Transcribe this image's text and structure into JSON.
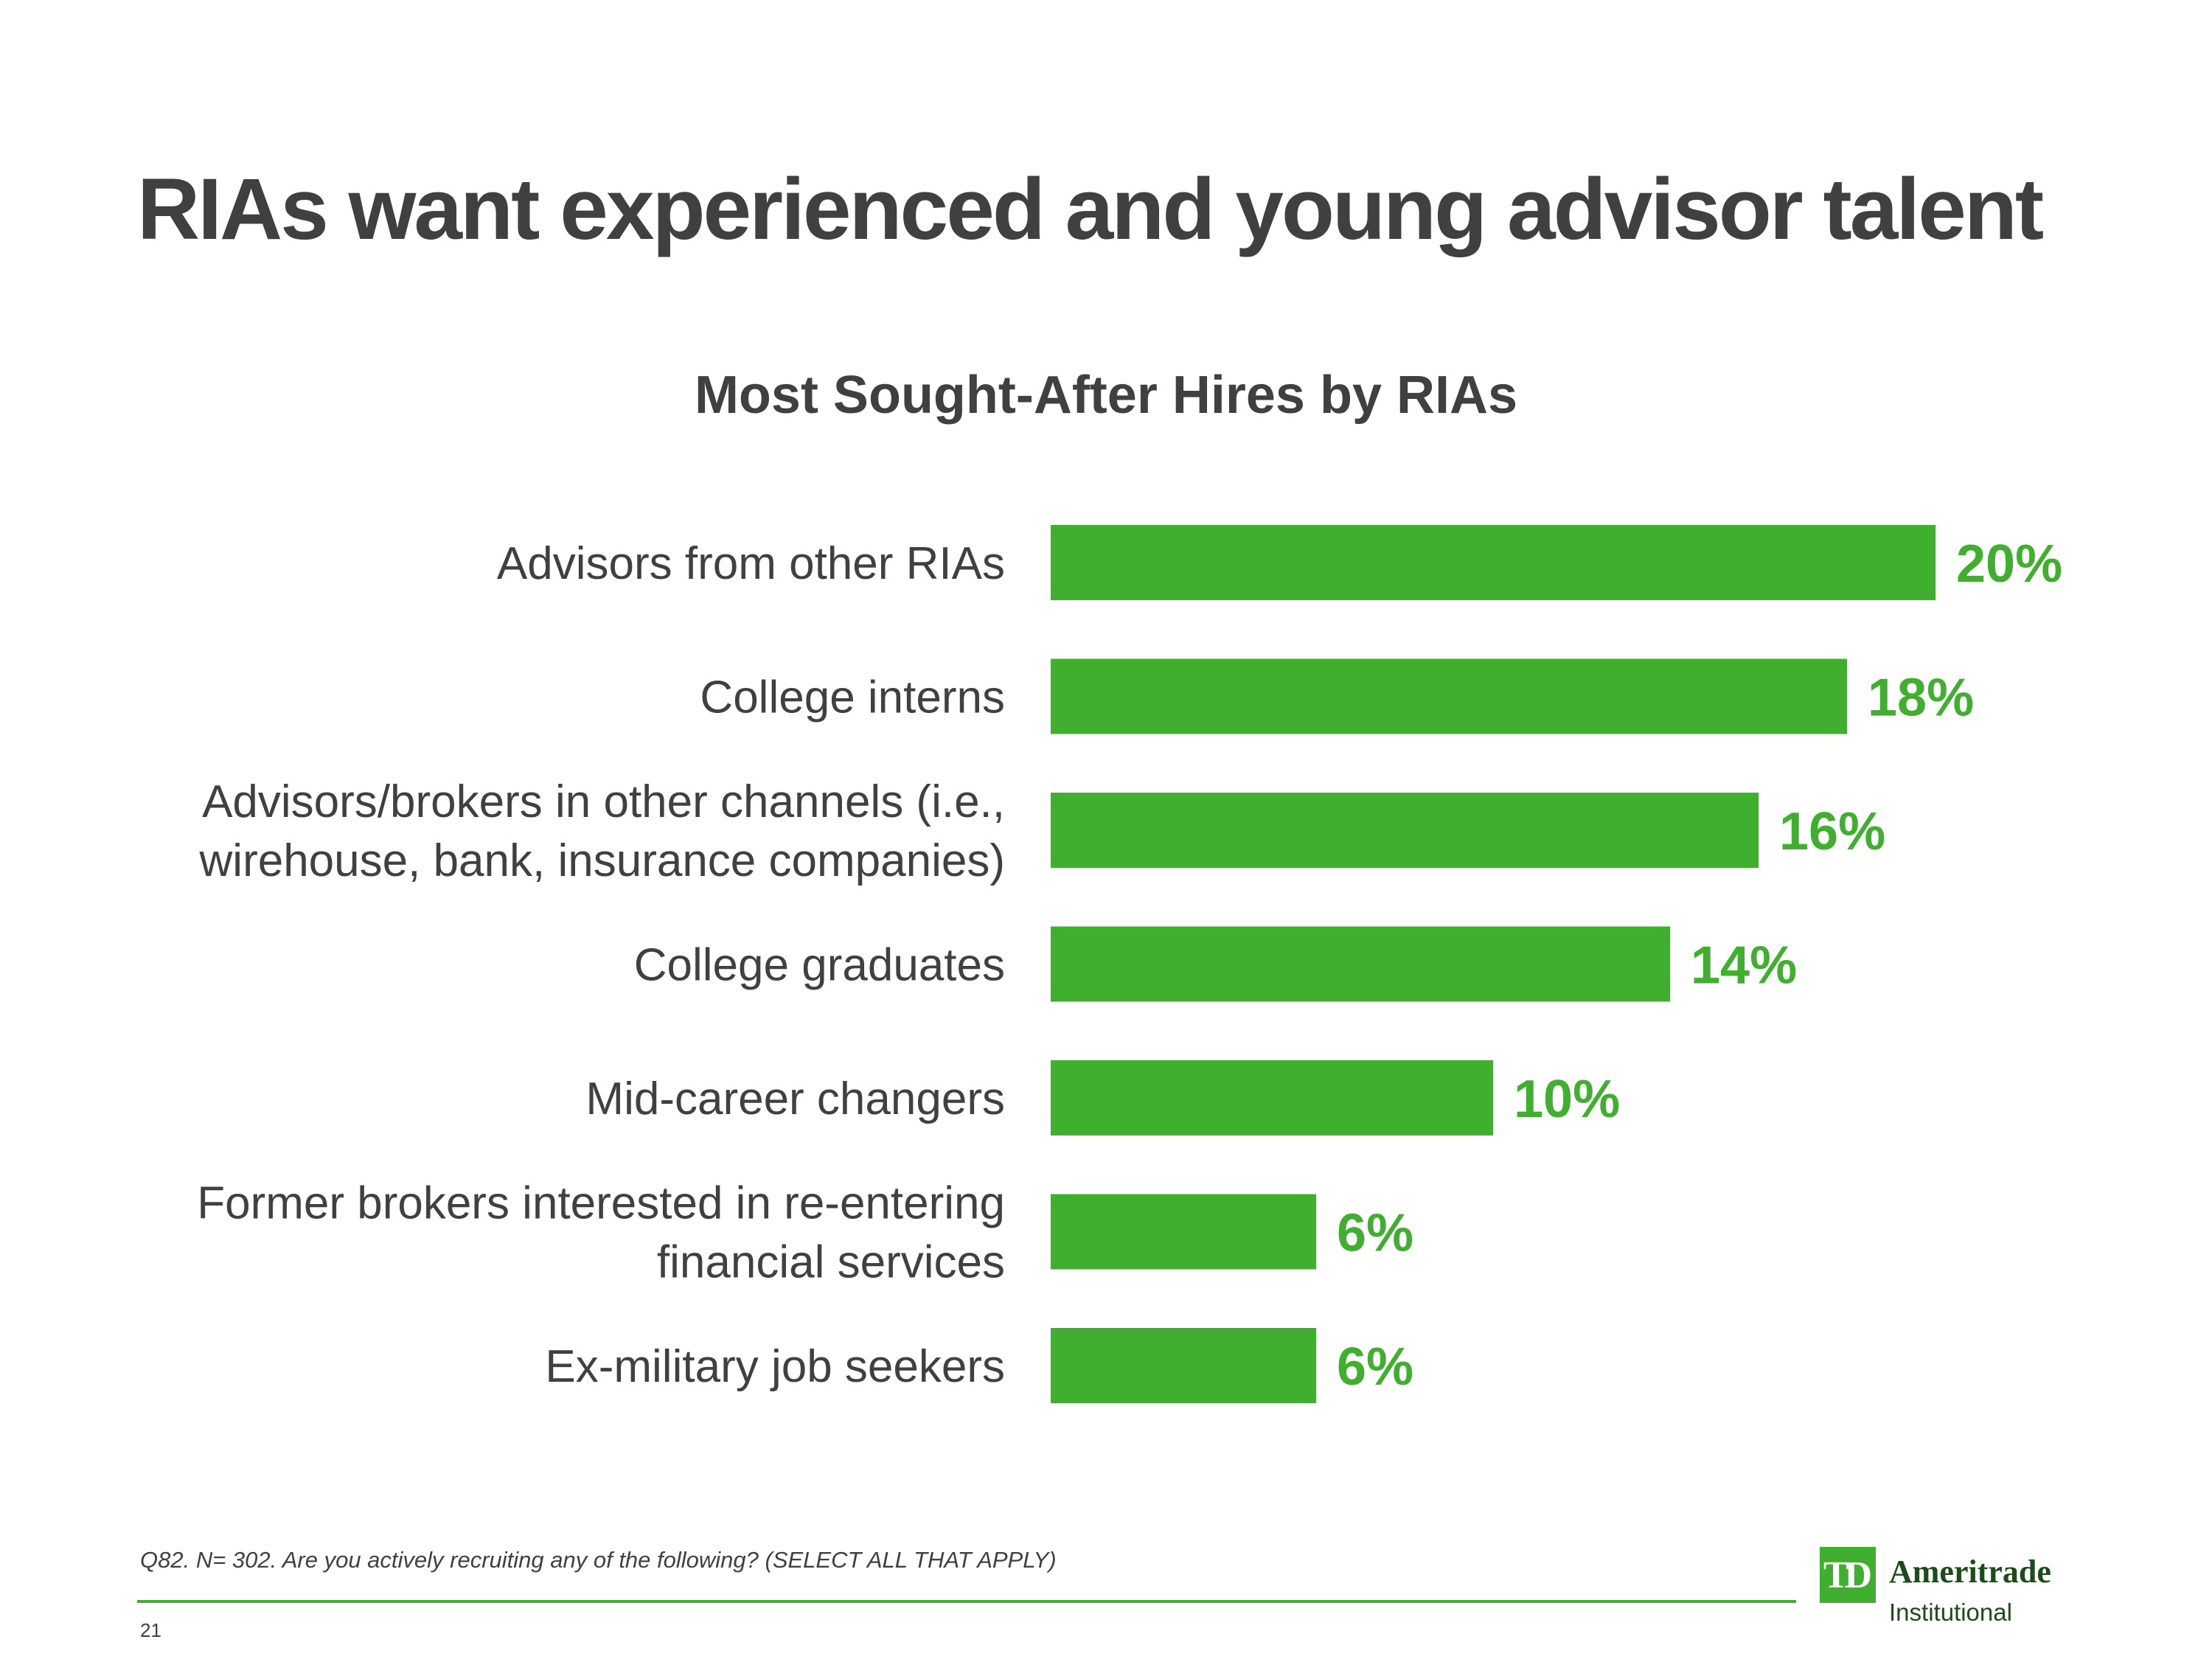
{
  "slide": {
    "title": "RIAs want experienced and young advisor talent",
    "footnote": "Q82. N= 302. Are you actively recruiting any of the following? (SELECT ALL THAT APPLY)",
    "page_number": "21"
  },
  "logo": {
    "mark": "TD",
    "name": "Ameritrade",
    "sub": "Institutional"
  },
  "colors": {
    "bar": "#40ae2e",
    "text": "#404040"
  },
  "chart_data": {
    "type": "bar",
    "orientation": "horizontal",
    "title": "Most Sought-After Hires by RIAs",
    "xlabel": "",
    "ylabel": "",
    "xlim": [
      0,
      20
    ],
    "categories": [
      [
        "Advisors from other RIAs"
      ],
      [
        "College interns"
      ],
      [
        "Advisors/brokers in other channels (i.e.,",
        "wirehouse, bank, insurance companies)"
      ],
      [
        "College graduates"
      ],
      [
        "Mid-career changers"
      ],
      [
        "Former brokers interested in re-entering",
        "financial services"
      ],
      [
        "Ex-military job seekers"
      ]
    ],
    "values": [
      20,
      18,
      16,
      14,
      10,
      6,
      6
    ],
    "value_labels": [
      "20%",
      "18%",
      "16%",
      "14%",
      "10%",
      "6%",
      "6%"
    ],
    "grid": false,
    "legend": "none"
  }
}
